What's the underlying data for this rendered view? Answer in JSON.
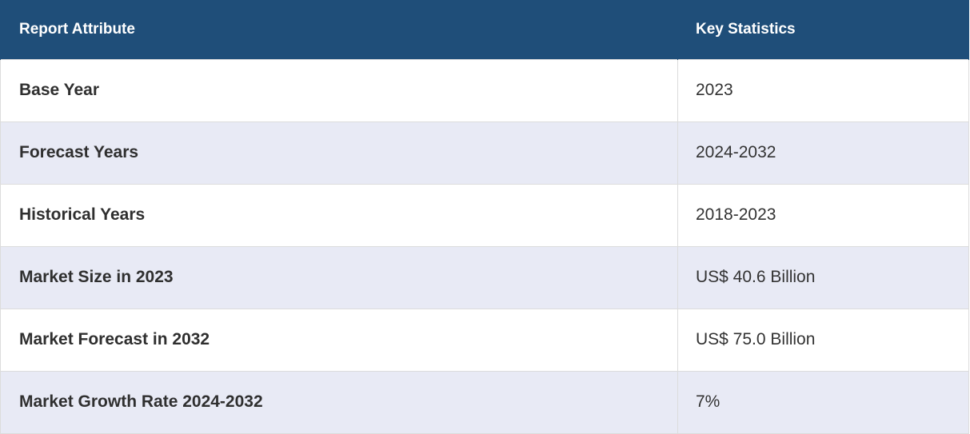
{
  "table": {
    "headers": {
      "attribute": "Report Attribute",
      "statistics": "Key Statistics"
    },
    "rows": [
      {
        "attribute": "Base Year",
        "value": "2023"
      },
      {
        "attribute": "Forecast Years",
        "value": "2024-2032"
      },
      {
        "attribute": "Historical Years",
        "value": "2018-2023"
      },
      {
        "attribute": "Market Size in 2023",
        "value": "US$ 40.6 Billion"
      },
      {
        "attribute": "Market Forecast in 2032",
        "value": "US$ 75.0 Billion"
      },
      {
        "attribute": "Market Growth Rate 2024-2032",
        "value": "7%"
      }
    ],
    "colors": {
      "header_bg": "#1f4e79",
      "header_text": "#ffffff",
      "row_alt_bg": "#e8eaf5",
      "border": "#dcdcdc"
    }
  }
}
